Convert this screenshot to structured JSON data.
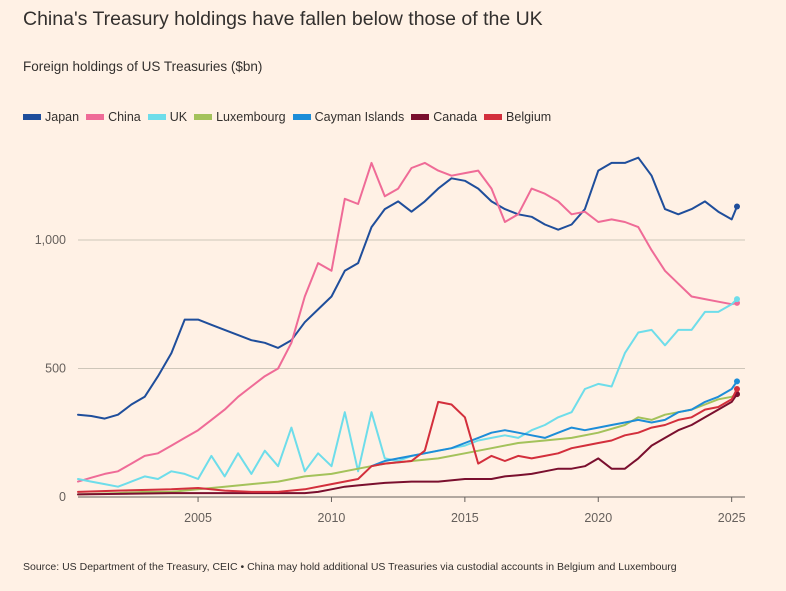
{
  "title": "China's Treasury holdings have fallen below those of the UK",
  "subtitle": "Foreign holdings of US Treasuries ($bn)",
  "source": "Source: US Department of the Treasury, CEIC • China may hold additional US Treasuries via custodial accounts in Belgium and Luxembourg",
  "chart_data": {
    "type": "line",
    "xlim": [
      2000.5,
      2025.5
    ],
    "ylim": [
      0,
      1350
    ],
    "yticks": [
      0,
      500,
      1000
    ],
    "ytick_labels": [
      "0",
      "500",
      "1,000"
    ],
    "xticks": [
      2005,
      2010,
      2015,
      2020,
      2025
    ],
    "xtick_labels": [
      "2005",
      "2010",
      "2015",
      "2020",
      "2025"
    ],
    "grid": "horizontal",
    "legend": "top",
    "series": [
      {
        "name": "Japan",
        "color": "#1F4E9B",
        "end_dot": true,
        "points": [
          [
            2000.5,
            320
          ],
          [
            2001,
            315
          ],
          [
            2001.5,
            305
          ],
          [
            2002,
            320
          ],
          [
            2002.5,
            360
          ],
          [
            2003,
            390
          ],
          [
            2003.5,
            470
          ],
          [
            2004,
            560
          ],
          [
            2004.5,
            690
          ],
          [
            2005,
            690
          ],
          [
            2005.5,
            670
          ],
          [
            2006,
            650
          ],
          [
            2006.5,
            630
          ],
          [
            2007,
            610
          ],
          [
            2007.5,
            600
          ],
          [
            2008,
            580
          ],
          [
            2008.5,
            610
          ],
          [
            2009,
            680
          ],
          [
            2009.5,
            730
          ],
          [
            2010,
            780
          ],
          [
            2010.5,
            880
          ],
          [
            2011,
            910
          ],
          [
            2011.5,
            1050
          ],
          [
            2012,
            1120
          ],
          [
            2012.5,
            1150
          ],
          [
            2013,
            1110
          ],
          [
            2013.5,
            1150
          ],
          [
            2014,
            1200
          ],
          [
            2014.5,
            1240
          ],
          [
            2015,
            1230
          ],
          [
            2015.5,
            1200
          ],
          [
            2016,
            1150
          ],
          [
            2016.5,
            1120
          ],
          [
            2017,
            1100
          ],
          [
            2017.5,
            1090
          ],
          [
            2018,
            1060
          ],
          [
            2018.5,
            1040
          ],
          [
            2019,
            1060
          ],
          [
            2019.5,
            1120
          ],
          [
            2020,
            1270
          ],
          [
            2020.5,
            1300
          ],
          [
            2021,
            1300
          ],
          [
            2021.5,
            1320
          ],
          [
            2022,
            1250
          ],
          [
            2022.5,
            1120
          ],
          [
            2023,
            1100
          ],
          [
            2023.5,
            1120
          ],
          [
            2024,
            1150
          ],
          [
            2024.5,
            1110
          ],
          [
            2025,
            1080
          ],
          [
            2025.2,
            1130
          ]
        ]
      },
      {
        "name": "China",
        "color": "#EF6B97",
        "end_dot": true,
        "points": [
          [
            2000.5,
            60
          ],
          [
            2001,
            75
          ],
          [
            2001.5,
            90
          ],
          [
            2002,
            100
          ],
          [
            2002.5,
            130
          ],
          [
            2003,
            160
          ],
          [
            2003.5,
            170
          ],
          [
            2004,
            200
          ],
          [
            2004.5,
            230
          ],
          [
            2005,
            260
          ],
          [
            2005.5,
            300
          ],
          [
            2006,
            340
          ],
          [
            2006.5,
            390
          ],
          [
            2007,
            430
          ],
          [
            2007.5,
            470
          ],
          [
            2008,
            500
          ],
          [
            2008.5,
            600
          ],
          [
            2009,
            780
          ],
          [
            2009.5,
            910
          ],
          [
            2010,
            880
          ],
          [
            2010.5,
            1160
          ],
          [
            2011,
            1140
          ],
          [
            2011.5,
            1300
          ],
          [
            2012,
            1170
          ],
          [
            2012.5,
            1200
          ],
          [
            2013,
            1280
          ],
          [
            2013.5,
            1300
          ],
          [
            2014,
            1270
          ],
          [
            2014.5,
            1250
          ],
          [
            2015,
            1260
          ],
          [
            2015.5,
            1270
          ],
          [
            2016,
            1200
          ],
          [
            2016.5,
            1070
          ],
          [
            2017,
            1100
          ],
          [
            2017.5,
            1200
          ],
          [
            2018,
            1180
          ],
          [
            2018.5,
            1150
          ],
          [
            2019,
            1100
          ],
          [
            2019.5,
            1110
          ],
          [
            2020,
            1070
          ],
          [
            2020.5,
            1080
          ],
          [
            2021,
            1070
          ],
          [
            2021.5,
            1050
          ],
          [
            2022,
            960
          ],
          [
            2022.5,
            880
          ],
          [
            2023,
            830
          ],
          [
            2023.5,
            780
          ],
          [
            2024,
            770
          ],
          [
            2024.5,
            760
          ],
          [
            2025,
            750
          ],
          [
            2025.2,
            755
          ]
        ]
      },
      {
        "name": "UK",
        "color": "#6EDDEA",
        "end_dot": true,
        "points": [
          [
            2000.5,
            70
          ],
          [
            2001,
            60
          ],
          [
            2001.5,
            50
          ],
          [
            2002,
            40
          ],
          [
            2002.5,
            60
          ],
          [
            2003,
            80
          ],
          [
            2003.5,
            70
          ],
          [
            2004,
            100
          ],
          [
            2004.5,
            90
          ],
          [
            2005,
            70
          ],
          [
            2005.5,
            160
          ],
          [
            2006,
            80
          ],
          [
            2006.5,
            170
          ],
          [
            2007,
            90
          ],
          [
            2007.5,
            180
          ],
          [
            2008,
            120
          ],
          [
            2008.5,
            270
          ],
          [
            2009,
            100
          ],
          [
            2009.5,
            170
          ],
          [
            2010,
            120
          ],
          [
            2010.5,
            330
          ],
          [
            2011,
            100
          ],
          [
            2011.5,
            330
          ],
          [
            2012,
            150
          ],
          [
            2012.5,
            140
          ],
          [
            2013,
            160
          ],
          [
            2013.5,
            170
          ],
          [
            2014,
            180
          ],
          [
            2014.5,
            190
          ],
          [
            2015,
            200
          ],
          [
            2015.5,
            220
          ],
          [
            2016,
            230
          ],
          [
            2016.5,
            240
          ],
          [
            2017,
            230
          ],
          [
            2017.5,
            260
          ],
          [
            2018,
            280
          ],
          [
            2018.5,
            310
          ],
          [
            2019,
            330
          ],
          [
            2019.5,
            420
          ],
          [
            2020,
            440
          ],
          [
            2020.5,
            430
          ],
          [
            2021,
            560
          ],
          [
            2021.5,
            640
          ],
          [
            2022,
            650
          ],
          [
            2022.5,
            590
          ],
          [
            2023,
            650
          ],
          [
            2023.5,
            650
          ],
          [
            2024,
            720
          ],
          [
            2024.5,
            720
          ],
          [
            2025,
            750
          ],
          [
            2025.2,
            770
          ]
        ]
      },
      {
        "name": "Luxembourg",
        "color": "#A4C25B",
        "end_dot": true,
        "points": [
          [
            2000.5,
            10
          ],
          [
            2002,
            15
          ],
          [
            2003,
            20
          ],
          [
            2004,
            20
          ],
          [
            2005,
            30
          ],
          [
            2006,
            40
          ],
          [
            2007,
            50
          ],
          [
            2008,
            60
          ],
          [
            2009,
            80
          ],
          [
            2010,
            90
          ],
          [
            2011,
            110
          ],
          [
            2012,
            130
          ],
          [
            2013,
            140
          ],
          [
            2014,
            150
          ],
          [
            2015,
            170
          ],
          [
            2016,
            190
          ],
          [
            2017,
            210
          ],
          [
            2018,
            220
          ],
          [
            2019,
            230
          ],
          [
            2020,
            250
          ],
          [
            2021,
            280
          ],
          [
            2021.5,
            310
          ],
          [
            2022,
            300
          ],
          [
            2022.5,
            320
          ],
          [
            2023,
            330
          ],
          [
            2023.5,
            340
          ],
          [
            2024,
            360
          ],
          [
            2024.5,
            380
          ],
          [
            2025,
            390
          ],
          [
            2025.2,
            400
          ]
        ]
      },
      {
        "name": "Cayman Islands",
        "color": "#1D8DD8",
        "end_dot": true,
        "points": [
          [
            2011.5,
            120
          ],
          [
            2012,
            140
          ],
          [
            2012.5,
            150
          ],
          [
            2013,
            160
          ],
          [
            2013.5,
            170
          ],
          [
            2014,
            180
          ],
          [
            2014.5,
            190
          ],
          [
            2015,
            210
          ],
          [
            2015.5,
            230
          ],
          [
            2016,
            250
          ],
          [
            2016.5,
            260
          ],
          [
            2017,
            250
          ],
          [
            2017.5,
            240
          ],
          [
            2018,
            230
          ],
          [
            2018.5,
            250
          ],
          [
            2019,
            270
          ],
          [
            2019.5,
            260
          ],
          [
            2020,
            270
          ],
          [
            2020.5,
            280
          ],
          [
            2021,
            290
          ],
          [
            2021.5,
            300
          ],
          [
            2022,
            290
          ],
          [
            2022.5,
            300
          ],
          [
            2023,
            330
          ],
          [
            2023.5,
            340
          ],
          [
            2024,
            370
          ],
          [
            2024.5,
            390
          ],
          [
            2025,
            420
          ],
          [
            2025.2,
            450
          ]
        ]
      },
      {
        "name": "Canada",
        "color": "#7A0F2E",
        "end_dot": true,
        "points": [
          [
            2000.5,
            10
          ],
          [
            2002,
            12
          ],
          [
            2004,
            15
          ],
          [
            2006,
            15
          ],
          [
            2008,
            15
          ],
          [
            2009,
            15
          ],
          [
            2009.5,
            20
          ],
          [
            2010,
            30
          ],
          [
            2010.5,
            40
          ],
          [
            2011,
            45
          ],
          [
            2011.5,
            50
          ],
          [
            2012,
            55
          ],
          [
            2013,
            60
          ],
          [
            2014,
            60
          ],
          [
            2015,
            70
          ],
          [
            2016,
            70
          ],
          [
            2016.5,
            80
          ],
          [
            2017,
            85
          ],
          [
            2017.5,
            90
          ],
          [
            2018,
            100
          ],
          [
            2018.5,
            110
          ],
          [
            2019,
            110
          ],
          [
            2019.5,
            120
          ],
          [
            2020,
            150
          ],
          [
            2020.5,
            110
          ],
          [
            2021,
            110
          ],
          [
            2021.5,
            150
          ],
          [
            2022,
            200
          ],
          [
            2022.5,
            230
          ],
          [
            2023,
            260
          ],
          [
            2023.5,
            280
          ],
          [
            2024,
            310
          ],
          [
            2024.5,
            340
          ],
          [
            2025,
            370
          ],
          [
            2025.2,
            400
          ]
        ]
      },
      {
        "name": "Belgium",
        "color": "#D32F3C",
        "end_dot": true,
        "points": [
          [
            2000.5,
            20
          ],
          [
            2002,
            25
          ],
          [
            2004,
            30
          ],
          [
            2005,
            35
          ],
          [
            2006,
            25
          ],
          [
            2007,
            20
          ],
          [
            2008,
            20
          ],
          [
            2009,
            30
          ],
          [
            2010,
            50
          ],
          [
            2011,
            70
          ],
          [
            2011.5,
            120
          ],
          [
            2012,
            130
          ],
          [
            2013,
            140
          ],
          [
            2013.5,
            180
          ],
          [
            2014,
            370
          ],
          [
            2014.5,
            360
          ],
          [
            2015,
            310
          ],
          [
            2015.5,
            130
          ],
          [
            2016,
            160
          ],
          [
            2016.5,
            140
          ],
          [
            2017,
            160
          ],
          [
            2017.5,
            150
          ],
          [
            2018,
            160
          ],
          [
            2018.5,
            170
          ],
          [
            2019,
            190
          ],
          [
            2019.5,
            200
          ],
          [
            2020,
            210
          ],
          [
            2020.5,
            220
          ],
          [
            2021,
            240
          ],
          [
            2021.5,
            250
          ],
          [
            2022,
            270
          ],
          [
            2022.5,
            280
          ],
          [
            2023,
            300
          ],
          [
            2023.5,
            310
          ],
          [
            2024,
            340
          ],
          [
            2024.5,
            350
          ],
          [
            2025,
            380
          ],
          [
            2025.2,
            420
          ]
        ]
      }
    ]
  }
}
